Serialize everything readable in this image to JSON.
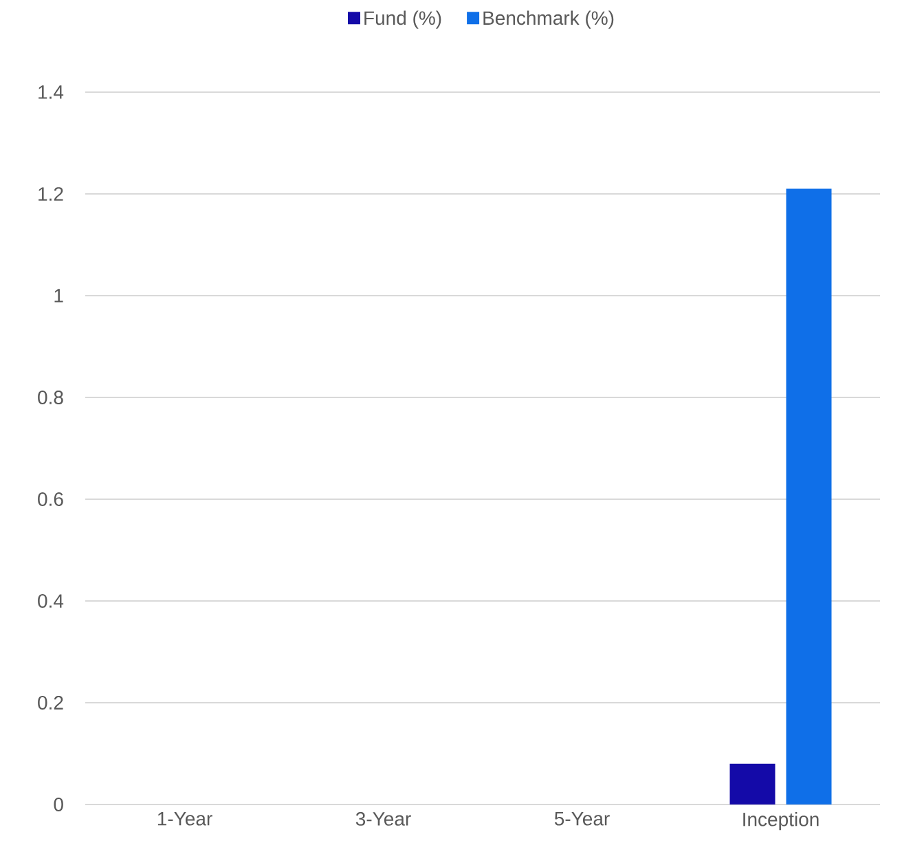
{
  "chart_data": {
    "type": "bar",
    "categories": [
      "1-Year",
      "3-Year",
      "5-Year",
      "Inception"
    ],
    "series": [
      {
        "name": "Fund (%)",
        "color": "#140aa8",
        "values": [
          null,
          null,
          null,
          0.08
        ]
      },
      {
        "name": "Benchmark (%)",
        "color": "#0f6fe8",
        "values": [
          null,
          null,
          null,
          1.21
        ]
      }
    ],
    "ylim": [
      0,
      1.4
    ],
    "yticks": [
      0,
      0.2,
      0.4,
      0.6,
      0.8,
      1,
      1.2,
      1.4
    ],
    "grid": "y",
    "legend": "top"
  }
}
